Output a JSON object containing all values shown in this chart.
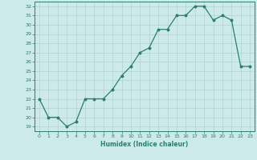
{
  "x": [
    0,
    1,
    2,
    3,
    4,
    5,
    6,
    7,
    8,
    9,
    10,
    11,
    12,
    13,
    14,
    15,
    16,
    17,
    18,
    19,
    20,
    21,
    22,
    23
  ],
  "y": [
    22,
    20,
    20,
    19,
    19.5,
    22,
    22,
    22,
    23,
    24.5,
    25.5,
    27,
    27.5,
    29.5,
    29.5,
    31,
    31,
    32,
    32,
    30.5,
    31,
    30.5,
    25.5,
    25.5
  ],
  "line_color": "#2e7d6e",
  "marker": "o",
  "marker_size": 1.8,
  "line_width": 0.9,
  "bg_color": "#cceae8",
  "grid_color": "#aed4d1",
  "tick_color": "#2e7d6e",
  "label_color": "#2e7d6e",
  "xlabel": "Humidex (Indice chaleur)",
  "ylim": [
    18.5,
    32.5
  ],
  "xlim": [
    -0.5,
    23.5
  ],
  "yticks": [
    19,
    20,
    21,
    22,
    23,
    24,
    25,
    26,
    27,
    28,
    29,
    30,
    31,
    32
  ],
  "xticks": [
    0,
    1,
    2,
    3,
    4,
    5,
    6,
    7,
    8,
    9,
    10,
    11,
    12,
    13,
    14,
    15,
    16,
    17,
    18,
    19,
    20,
    21,
    22,
    23
  ]
}
